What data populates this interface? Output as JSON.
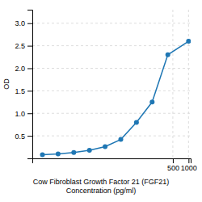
{
  "chart_data": {
    "type": "line",
    "x": [
      1.5625,
      3.125,
      6.25,
      12.5,
      25,
      50,
      100,
      200,
      400,
      1000
    ],
    "values": [
      0.08,
      0.1,
      0.13,
      0.18,
      0.26,
      0.42,
      0.8,
      1.25,
      2.3,
      2.6
    ],
    "xlabel": "Cow Fibroblast Growth Factor 21 (FGF21)\nConcentration (pg/ml)",
    "ylabel": "OD",
    "log": "x",
    "xlim": [
      1,
      1100
    ],
    "xticks": [
      500,
      1000
    ],
    "ylim": [
      0,
      3.3
    ],
    "yticks": [
      0.5,
      {
        "value": 1.0,
        "label": "1.0"
      },
      1.5,
      {
        "value": 2.0,
        "label": "2.0"
      },
      2.5,
      {
        "value": 3.0,
        "label": "3.0"
      }
    ],
    "grid": true,
    "marker": "circle"
  }
}
